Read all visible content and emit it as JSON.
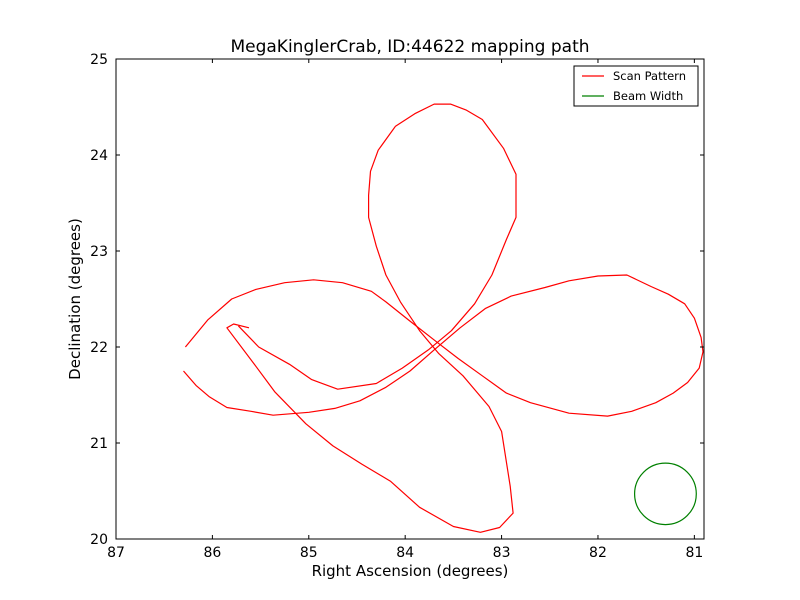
{
  "chart_data": {
    "type": "line",
    "title": "MegaKinglerCrab, ID:44622 mapping path",
    "xlabel": "Right Ascension (degrees)",
    "ylabel": "Declination (degrees)",
    "xlim": [
      87,
      80.9
    ],
    "ylim": [
      20,
      25
    ],
    "x_inverted": true,
    "xticks": [
      87,
      86,
      85,
      84,
      83,
      82,
      81
    ],
    "yticks": [
      20,
      21,
      22,
      23,
      24,
      25
    ],
    "grid": false,
    "legend_position": "top-right",
    "series": [
      {
        "name": "Scan Pattern",
        "color": "#ff0000",
        "points": [
          [
            86.3,
            21.75
          ],
          [
            86.17,
            21.6
          ],
          [
            86.03,
            21.48
          ],
          [
            85.85,
            21.37
          ],
          [
            85.6,
            21.33
          ],
          [
            85.37,
            21.29
          ],
          [
            85.0,
            21.32
          ],
          [
            84.73,
            21.36
          ],
          [
            84.47,
            21.44
          ],
          [
            84.2,
            21.58
          ],
          [
            83.95,
            21.75
          ],
          [
            83.7,
            21.97
          ],
          [
            83.43,
            22.2
          ],
          [
            83.17,
            22.4
          ],
          [
            82.9,
            22.53
          ],
          [
            82.55,
            22.62
          ],
          [
            82.3,
            22.69
          ],
          [
            82.0,
            22.74
          ],
          [
            81.7,
            22.75
          ],
          [
            81.45,
            22.63
          ],
          [
            81.27,
            22.55
          ],
          [
            81.1,
            22.45
          ],
          [
            81.0,
            22.3
          ],
          [
            80.93,
            22.1
          ],
          [
            80.91,
            21.95
          ],
          [
            80.95,
            21.78
          ],
          [
            81.07,
            21.63
          ],
          [
            81.22,
            21.52
          ],
          [
            81.4,
            21.42
          ],
          [
            81.65,
            21.33
          ],
          [
            81.9,
            21.28
          ],
          [
            82.3,
            21.31
          ],
          [
            82.7,
            21.42
          ],
          [
            82.95,
            21.52
          ],
          [
            83.2,
            21.7
          ],
          [
            83.45,
            21.88
          ],
          [
            83.67,
            22.05
          ],
          [
            83.95,
            22.27
          ],
          [
            84.2,
            22.47
          ],
          [
            84.35,
            22.58
          ],
          [
            84.65,
            22.67
          ],
          [
            84.95,
            22.7
          ],
          [
            85.25,
            22.67
          ],
          [
            85.55,
            22.6
          ],
          [
            85.8,
            22.5
          ],
          [
            86.05,
            22.28
          ],
          [
            86.28,
            22.0
          ]
        ]
      },
      {
        "name": "",
        "color": "#ff0000",
        "points": [
          [
            85.73,
            22.22
          ],
          [
            85.52,
            22.0
          ],
          [
            85.2,
            21.82
          ],
          [
            84.97,
            21.66
          ],
          [
            84.7,
            21.56
          ],
          [
            84.3,
            21.62
          ],
          [
            84.03,
            21.78
          ],
          [
            83.76,
            21.97
          ],
          [
            83.52,
            22.17
          ],
          [
            83.28,
            22.45
          ],
          [
            83.1,
            22.75
          ],
          [
            82.95,
            23.12
          ],
          [
            82.85,
            23.35
          ],
          [
            82.85,
            23.8
          ],
          [
            82.98,
            24.07
          ],
          [
            83.2,
            24.37
          ],
          [
            83.37,
            24.47
          ],
          [
            83.53,
            24.53
          ],
          [
            83.7,
            24.53
          ],
          [
            83.9,
            24.43
          ],
          [
            84.1,
            24.3
          ],
          [
            84.28,
            24.05
          ],
          [
            84.36,
            23.83
          ],
          [
            84.38,
            23.58
          ],
          [
            84.38,
            23.35
          ],
          [
            84.3,
            23.05
          ],
          [
            84.2,
            22.75
          ],
          [
            84.05,
            22.47
          ],
          [
            83.85,
            22.17
          ],
          [
            83.65,
            21.93
          ],
          [
            83.4,
            21.7
          ],
          [
            83.13,
            21.38
          ],
          [
            83.0,
            21.12
          ],
          [
            82.91,
            20.55
          ],
          [
            82.88,
            20.27
          ],
          [
            83.02,
            20.12
          ],
          [
            83.22,
            20.07
          ],
          [
            83.5,
            20.13
          ],
          [
            83.85,
            20.33
          ],
          [
            84.15,
            20.6
          ],
          [
            84.45,
            20.78
          ],
          [
            84.75,
            20.97
          ],
          [
            85.03,
            21.2
          ],
          [
            85.35,
            21.53
          ],
          [
            85.55,
            21.8
          ],
          [
            85.85,
            22.2
          ],
          [
            85.78,
            22.24
          ],
          [
            85.62,
            22.2
          ]
        ]
      },
      {
        "name": "Beam Width",
        "color": "#008000",
        "circle": {
          "cx": 81.3,
          "cy": 20.47,
          "r_x": 0.32,
          "r_y": 0.32
        }
      }
    ]
  }
}
